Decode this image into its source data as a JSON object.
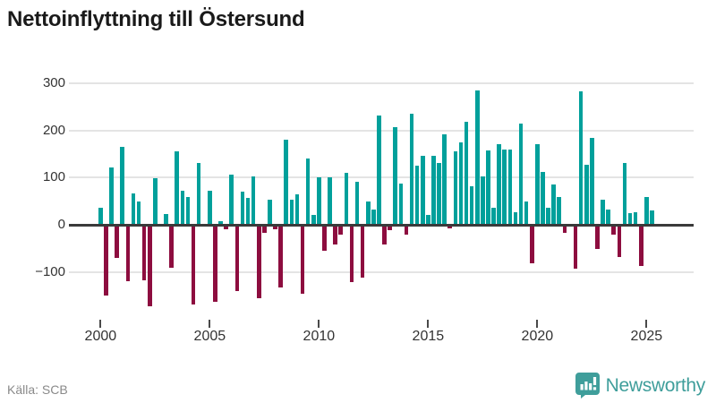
{
  "title": "Nettoinflyttning till Östersund",
  "source": "Källa: SCB",
  "branding": {
    "name": "Newsworthy",
    "icon": "bar-chart-speech-bubble-icon"
  },
  "colors": {
    "positive_bar": "#00a09b",
    "negative_bar": "#8d0d3f",
    "zero_line": "#3a3a3a",
    "gridline": "#e4e4e4",
    "axis_text": "#333333",
    "title_text": "#1a1a1a",
    "source_text": "#8a8a8a",
    "brand_teal": "#3f9e9b"
  },
  "chart_data": {
    "type": "bar",
    "title": "Nettoinflyttning till Östersund",
    "xlabel": "",
    "ylabel": "",
    "frequency": "quarterly",
    "start_period": "2000 Q1",
    "end_period": "2025 Q2",
    "ylim": [
      -190,
      315
    ],
    "grid": "horizontal",
    "legend": "none",
    "y_ticks": [
      300,
      200,
      100,
      0,
      -100
    ],
    "y_tick_labels": [
      "300",
      "200",
      "100",
      "0",
      "−100"
    ],
    "x_tick_years": [
      "2000",
      "2005",
      "2010",
      "2015",
      "2020",
      "2025"
    ],
    "categories": [
      "2000 Q1",
      "2000 Q2",
      "2000 Q3",
      "2000 Q4",
      "2001 Q1",
      "2001 Q2",
      "2001 Q3",
      "2001 Q4",
      "2002 Q1",
      "2002 Q2",
      "2002 Q3",
      "2002 Q4",
      "2003 Q1",
      "2003 Q2",
      "2003 Q3",
      "2003 Q4",
      "2004 Q1",
      "2004 Q2",
      "2004 Q3",
      "2004 Q4",
      "2005 Q1",
      "2005 Q2",
      "2005 Q3",
      "2005 Q4",
      "2006 Q1",
      "2006 Q2",
      "2006 Q3",
      "2006 Q4",
      "2007 Q1",
      "2007 Q2",
      "2007 Q3",
      "2007 Q4",
      "2008 Q1",
      "2008 Q2",
      "2008 Q3",
      "2008 Q4",
      "2009 Q1",
      "2009 Q2",
      "2009 Q3",
      "2009 Q4",
      "2010 Q1",
      "2010 Q2",
      "2010 Q3",
      "2010 Q4",
      "2011 Q1",
      "2011 Q2",
      "2011 Q3",
      "2011 Q4",
      "2012 Q1",
      "2012 Q2",
      "2012 Q3",
      "2012 Q4",
      "2013 Q1",
      "2013 Q2",
      "2013 Q3",
      "2013 Q4",
      "2014 Q1",
      "2014 Q2",
      "2014 Q3",
      "2014 Q4",
      "2015 Q1",
      "2015 Q2",
      "2015 Q3",
      "2015 Q4",
      "2016 Q1",
      "2016 Q2",
      "2016 Q3",
      "2016 Q4",
      "2017 Q1",
      "2017 Q2",
      "2017 Q3",
      "2017 Q4",
      "2018 Q1",
      "2018 Q2",
      "2018 Q3",
      "2018 Q4",
      "2019 Q1",
      "2019 Q2",
      "2019 Q3",
      "2019 Q4",
      "2020 Q1",
      "2020 Q2",
      "2020 Q3",
      "2020 Q4",
      "2021 Q1",
      "2021 Q2",
      "2021 Q3",
      "2021 Q4",
      "2022 Q1",
      "2022 Q2",
      "2022 Q3",
      "2022 Q4",
      "2023 Q1",
      "2023 Q2",
      "2023 Q3",
      "2023 Q4",
      "2024 Q1",
      "2024 Q2",
      "2024 Q3",
      "2024 Q4",
      "2025 Q1",
      "2025 Q2"
    ],
    "values": [
      37,
      -150,
      121,
      -71,
      165,
      -120,
      66,
      50,
      -118,
      -172,
      98,
      0,
      23,
      -91,
      155,
      72,
      59,
      -168,
      131,
      0,
      72,
      -164,
      8,
      -10,
      106,
      -140,
      70,
      57,
      103,
      -156,
      -17,
      54,
      -10,
      -133,
      180,
      54,
      65,
      -146,
      141,
      21,
      100,
      -55,
      100,
      -42,
      -20,
      111,
      -121,
      92,
      -112,
      49,
      33,
      232,
      -41,
      -11,
      207,
      87,
      -21,
      236,
      126,
      147,
      20,
      146,
      131,
      192,
      -8,
      155,
      174,
      219,
      81,
      285,
      102,
      157,
      37,
      171,
      160,
      159,
      26,
      214,
      49,
      -82,
      170,
      112,
      37,
      85,
      59,
      -17,
      0,
      -93,
      282,
      128,
      184,
      -52,
      54,
      32,
      -21,
      -69,
      130,
      25,
      27,
      -88,
      59,
      30
    ]
  }
}
